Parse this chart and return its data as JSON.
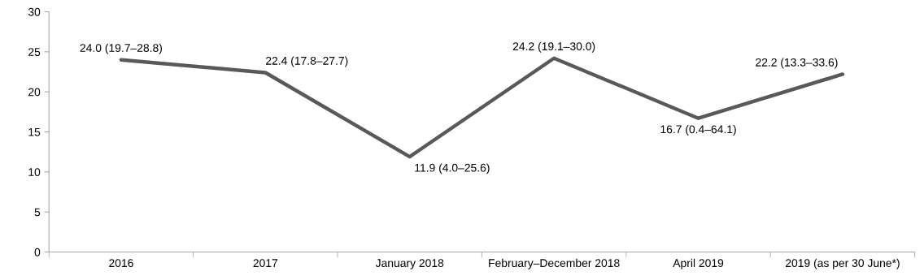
{
  "chart_data": {
    "type": "line",
    "categories": [
      "2016",
      "2017",
      "January 2018",
      "February–December 2018",
      "April 2019",
      "2019 (as per 30 June*)"
    ],
    "series": [
      {
        "color": "#595959",
        "values": [
          24.0,
          22.4,
          11.9,
          24.2,
          16.7,
          22.2
        ],
        "value_labels": [
          "24.0 (19.7–28.8)",
          "22.4 (17.8–27.7)",
          "11.9 (4.0–25.6)",
          "24.2 (19.1–30.0)",
          "16.7 (0.4–64.1)",
          "22.2 (13.3–33.6)"
        ]
      }
    ],
    "ylim": [
      0,
      30
    ],
    "yticks": [
      0,
      5,
      10,
      15,
      20,
      25,
      30
    ],
    "grid": false,
    "legend": false,
    "marker": "none",
    "line_style": "solid"
  }
}
